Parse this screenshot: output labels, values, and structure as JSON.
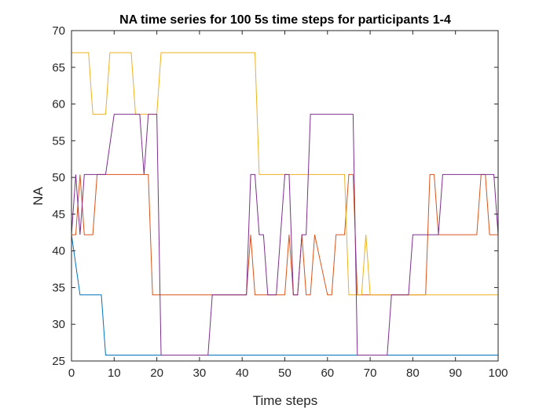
{
  "chart_data": {
    "type": "line",
    "title": "NA time series for 100 5s time steps for participants 1-4",
    "xlabel": "Time steps",
    "ylabel": "NA",
    "xlim": [
      0,
      100
    ],
    "ylim": [
      25,
      70
    ],
    "xticks": [
      0,
      10,
      20,
      30,
      40,
      50,
      60,
      70,
      80,
      90,
      100
    ],
    "yticks": [
      25,
      30,
      35,
      40,
      45,
      50,
      55,
      60,
      65,
      70
    ],
    "grid": false,
    "box": true,
    "series": [
      {
        "color": "#0072BD",
        "x": [
          0,
          2,
          7,
          8,
          100
        ],
        "y": [
          42.2,
          34,
          34,
          25.8,
          25.8
        ]
      },
      {
        "color": "#D95319",
        "x": [
          0,
          1,
          2,
          3,
          5,
          6,
          18,
          19,
          41,
          42,
          43,
          50,
          51,
          52,
          53,
          54,
          55,
          56,
          57,
          60,
          61,
          62,
          63,
          64,
          65,
          66,
          67,
          68,
          69,
          70,
          83,
          84,
          85,
          86,
          87,
          95,
          96,
          97,
          98,
          100
        ],
        "y": [
          42.2,
          42.2,
          50.4,
          42.2,
          42.2,
          50.4,
          50.4,
          34,
          34,
          42.2,
          34,
          34,
          42.2,
          34,
          34,
          42.2,
          34,
          34,
          42.2,
          34,
          34,
          42.2,
          42.2,
          42.2,
          50.4,
          50.4,
          34,
          34,
          34,
          34,
          34,
          50.4,
          50.4,
          42.2,
          42.2,
          42.2,
          50.4,
          50.4,
          42.2,
          42.2
        ]
      },
      {
        "color": "#EDB120",
        "x": [
          0,
          4,
          5,
          8,
          9,
          14,
          15,
          18,
          20,
          21,
          43,
          44,
          64,
          65,
          68,
          69,
          70,
          100
        ],
        "y": [
          67,
          67,
          58.6,
          58.6,
          67,
          67,
          58.6,
          58.6,
          58.6,
          67,
          67,
          50.4,
          50.4,
          34,
          34,
          42.2,
          34,
          34
        ]
      },
      {
        "color": "#7E2F8E",
        "x": [
          0,
          1,
          2,
          3,
          8,
          10,
          16,
          17,
          18,
          20,
          21,
          32,
          33,
          41,
          42,
          43,
          44,
          45,
          46,
          48,
          50,
          51,
          52,
          53,
          54,
          55,
          56,
          66,
          67,
          74,
          75,
          79,
          80,
          86,
          87,
          99,
          100
        ],
        "y": [
          42.2,
          50.4,
          42.2,
          50.4,
          50.4,
          58.6,
          58.6,
          50.4,
          58.6,
          58.6,
          25.8,
          25.8,
          34,
          34,
          50.4,
          50.4,
          42.2,
          42.2,
          34,
          34,
          50.4,
          50.4,
          34,
          34,
          42.2,
          42.2,
          58.6,
          58.6,
          25.8,
          25.8,
          34,
          34,
          42.2,
          42.2,
          50.4,
          50.4,
          42.2
        ]
      }
    ]
  }
}
